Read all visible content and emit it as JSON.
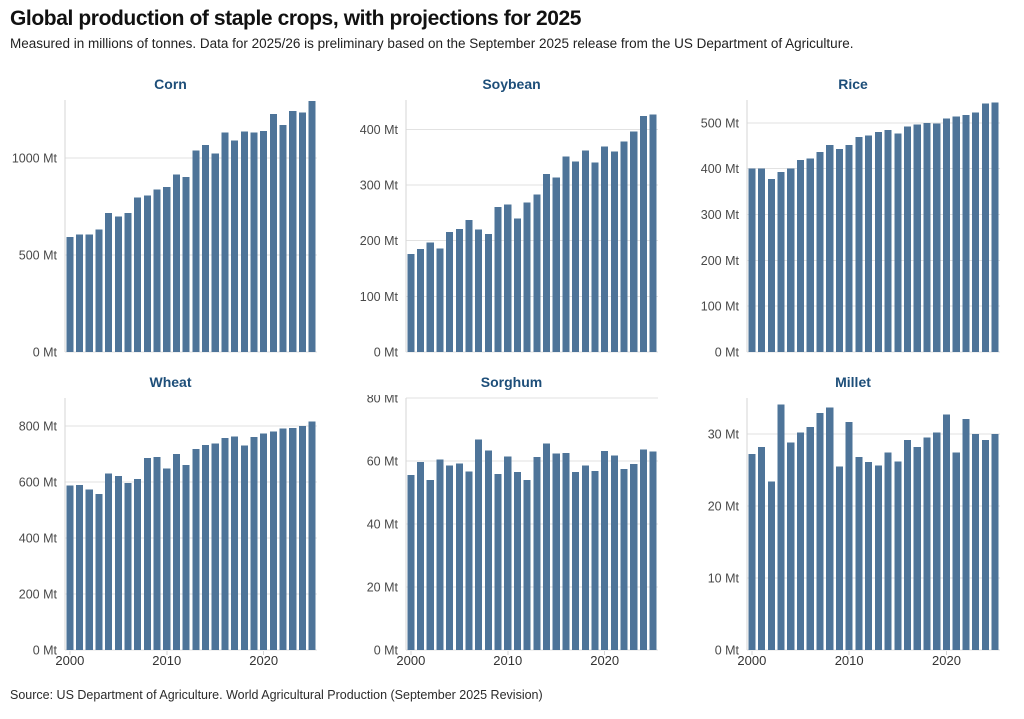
{
  "header": {
    "title": "Global production of staple crops, with projections for 2025",
    "subtitle": "Measured in millions of tonnes. Data for 2025/26 is preliminary based on the September 2025 release from the US Department of Agriculture."
  },
  "footer": {
    "source": "Source: US Department of Agriculture. World Agricultural Production (September 2025 Revision)"
  },
  "colors": {
    "bar": "#4e7499",
    "chart_title": "#1d4e79",
    "grid": "#e2e2e2",
    "axis_line": "#d6d6d6",
    "y_label": "#494949",
    "x_label": "#333333"
  },
  "unit": "Mt",
  "categories": [
    2000,
    2001,
    2002,
    2003,
    2004,
    2005,
    2006,
    2007,
    2008,
    2009,
    2010,
    2011,
    2012,
    2013,
    2014,
    2015,
    2016,
    2017,
    2018,
    2019,
    2020,
    2021,
    2022,
    2023,
    2024,
    2025
  ],
  "x_tick_labels": [
    "2000",
    "2010",
    "2020"
  ],
  "x_tick_indices": [
    0,
    10,
    20
  ],
  "chart_data": [
    {
      "type": "bar",
      "title": "Corn",
      "unit": "Mt",
      "ylim": [
        0,
        1300
      ],
      "yticks": [
        0,
        500,
        1000
      ],
      "show_x_labels": false,
      "categories": [
        2000,
        2001,
        2002,
        2003,
        2004,
        2005,
        2006,
        2007,
        2008,
        2009,
        2010,
        2011,
        2012,
        2013,
        2014,
        2015,
        2016,
        2017,
        2018,
        2019,
        2020,
        2021,
        2022,
        2023,
        2024,
        2025
      ],
      "values": [
        593,
        605,
        605,
        631,
        716,
        698,
        716,
        798,
        807,
        839,
        851,
        916,
        903,
        1040,
        1067,
        1023,
        1133,
        1091,
        1137,
        1132,
        1140,
        1228,
        1172,
        1242,
        1235,
        1295
      ]
    },
    {
      "type": "bar",
      "title": "Soybean",
      "unit": "Mt",
      "ylim": [
        0,
        453
      ],
      "yticks": [
        0,
        100,
        200,
        300,
        400
      ],
      "show_x_labels": false,
      "categories": [
        2000,
        2001,
        2002,
        2003,
        2004,
        2005,
        2006,
        2007,
        2008,
        2009,
        2010,
        2011,
        2012,
        2013,
        2014,
        2015,
        2016,
        2017,
        2018,
        2019,
        2020,
        2021,
        2022,
        2023,
        2024,
        2025
      ],
      "values": [
        176,
        185,
        197,
        186,
        216,
        221,
        237,
        220,
        212,
        261,
        265,
        240,
        269,
        283,
        320,
        314,
        351,
        342,
        362,
        341,
        369,
        360,
        378,
        396,
        424,
        427
      ]
    },
    {
      "type": "bar",
      "title": "Rice",
      "unit": "Mt",
      "ylim": [
        0,
        550
      ],
      "yticks": [
        0,
        100,
        200,
        300,
        400,
        500
      ],
      "show_x_labels": false,
      "categories": [
        2000,
        2001,
        2002,
        2003,
        2004,
        2005,
        2006,
        2007,
        2008,
        2009,
        2010,
        2011,
        2012,
        2013,
        2014,
        2015,
        2016,
        2017,
        2018,
        2019,
        2020,
        2021,
        2022,
        2023,
        2024,
        2025
      ],
      "values": [
        400,
        400,
        378,
        393,
        401,
        419,
        422,
        436,
        452,
        443,
        452,
        469,
        473,
        480,
        484,
        477,
        492,
        496,
        500,
        499,
        510,
        514,
        517,
        523,
        542,
        544
      ]
    },
    {
      "type": "bar",
      "title": "Wheat",
      "unit": "Mt",
      "ylim": [
        0,
        900
      ],
      "yticks": [
        0,
        200,
        400,
        600,
        800
      ],
      "show_x_labels": true,
      "categories": [
        2000,
        2001,
        2002,
        2003,
        2004,
        2005,
        2006,
        2007,
        2008,
        2009,
        2010,
        2011,
        2012,
        2013,
        2014,
        2015,
        2016,
        2017,
        2018,
        2019,
        2020,
        2021,
        2022,
        2023,
        2024,
        2025
      ],
      "values": [
        587,
        589,
        573,
        558,
        630,
        621,
        597,
        611,
        685,
        690,
        649,
        700,
        661,
        718,
        733,
        738,
        758,
        763,
        731,
        760,
        773,
        780,
        791,
        792,
        800,
        816
      ]
    },
    {
      "type": "bar",
      "title": "Sorghum",
      "unit": "Mt",
      "ylim": [
        0,
        80
      ],
      "yticks": [
        0,
        20,
        40,
        60,
        80
      ],
      "show_x_labels": true,
      "categories": [
        2000,
        2001,
        2002,
        2003,
        2004,
        2005,
        2006,
        2007,
        2008,
        2009,
        2010,
        2011,
        2012,
        2013,
        2014,
        2015,
        2016,
        2017,
        2018,
        2019,
        2020,
        2021,
        2022,
        2023,
        2024,
        2025
      ],
      "values": [
        55.6,
        59.7,
        54,
        60.4,
        58.5,
        59.2,
        56.7,
        66.8,
        63.4,
        55.9,
        61.4,
        56.5,
        54,
        61.3,
        65.6,
        62.4,
        62.5,
        56.5,
        58.6,
        56.9,
        63.2,
        61.7,
        57.5,
        59.1,
        63.7,
        63
      ]
    },
    {
      "type": "bar",
      "title": "Millet",
      "unit": "Mt",
      "ylim": [
        0,
        35
      ],
      "yticks": [
        0,
        10,
        20,
        30
      ],
      "show_x_labels": true,
      "categories": [
        2000,
        2001,
        2002,
        2003,
        2004,
        2005,
        2006,
        2007,
        2008,
        2009,
        2010,
        2011,
        2012,
        2013,
        2014,
        2015,
        2016,
        2017,
        2018,
        2019,
        2020,
        2021,
        2022,
        2023,
        2024,
        2025
      ],
      "values": [
        27.2,
        28.2,
        23.4,
        34.1,
        28.8,
        30.2,
        31,
        32.9,
        33.7,
        25.5,
        31.7,
        26.8,
        26.1,
        25.6,
        27.4,
        26.2,
        29.2,
        28.2,
        29.5,
        30.2,
        32.7,
        27.4,
        32.1,
        30,
        29.2,
        30
      ]
    }
  ]
}
